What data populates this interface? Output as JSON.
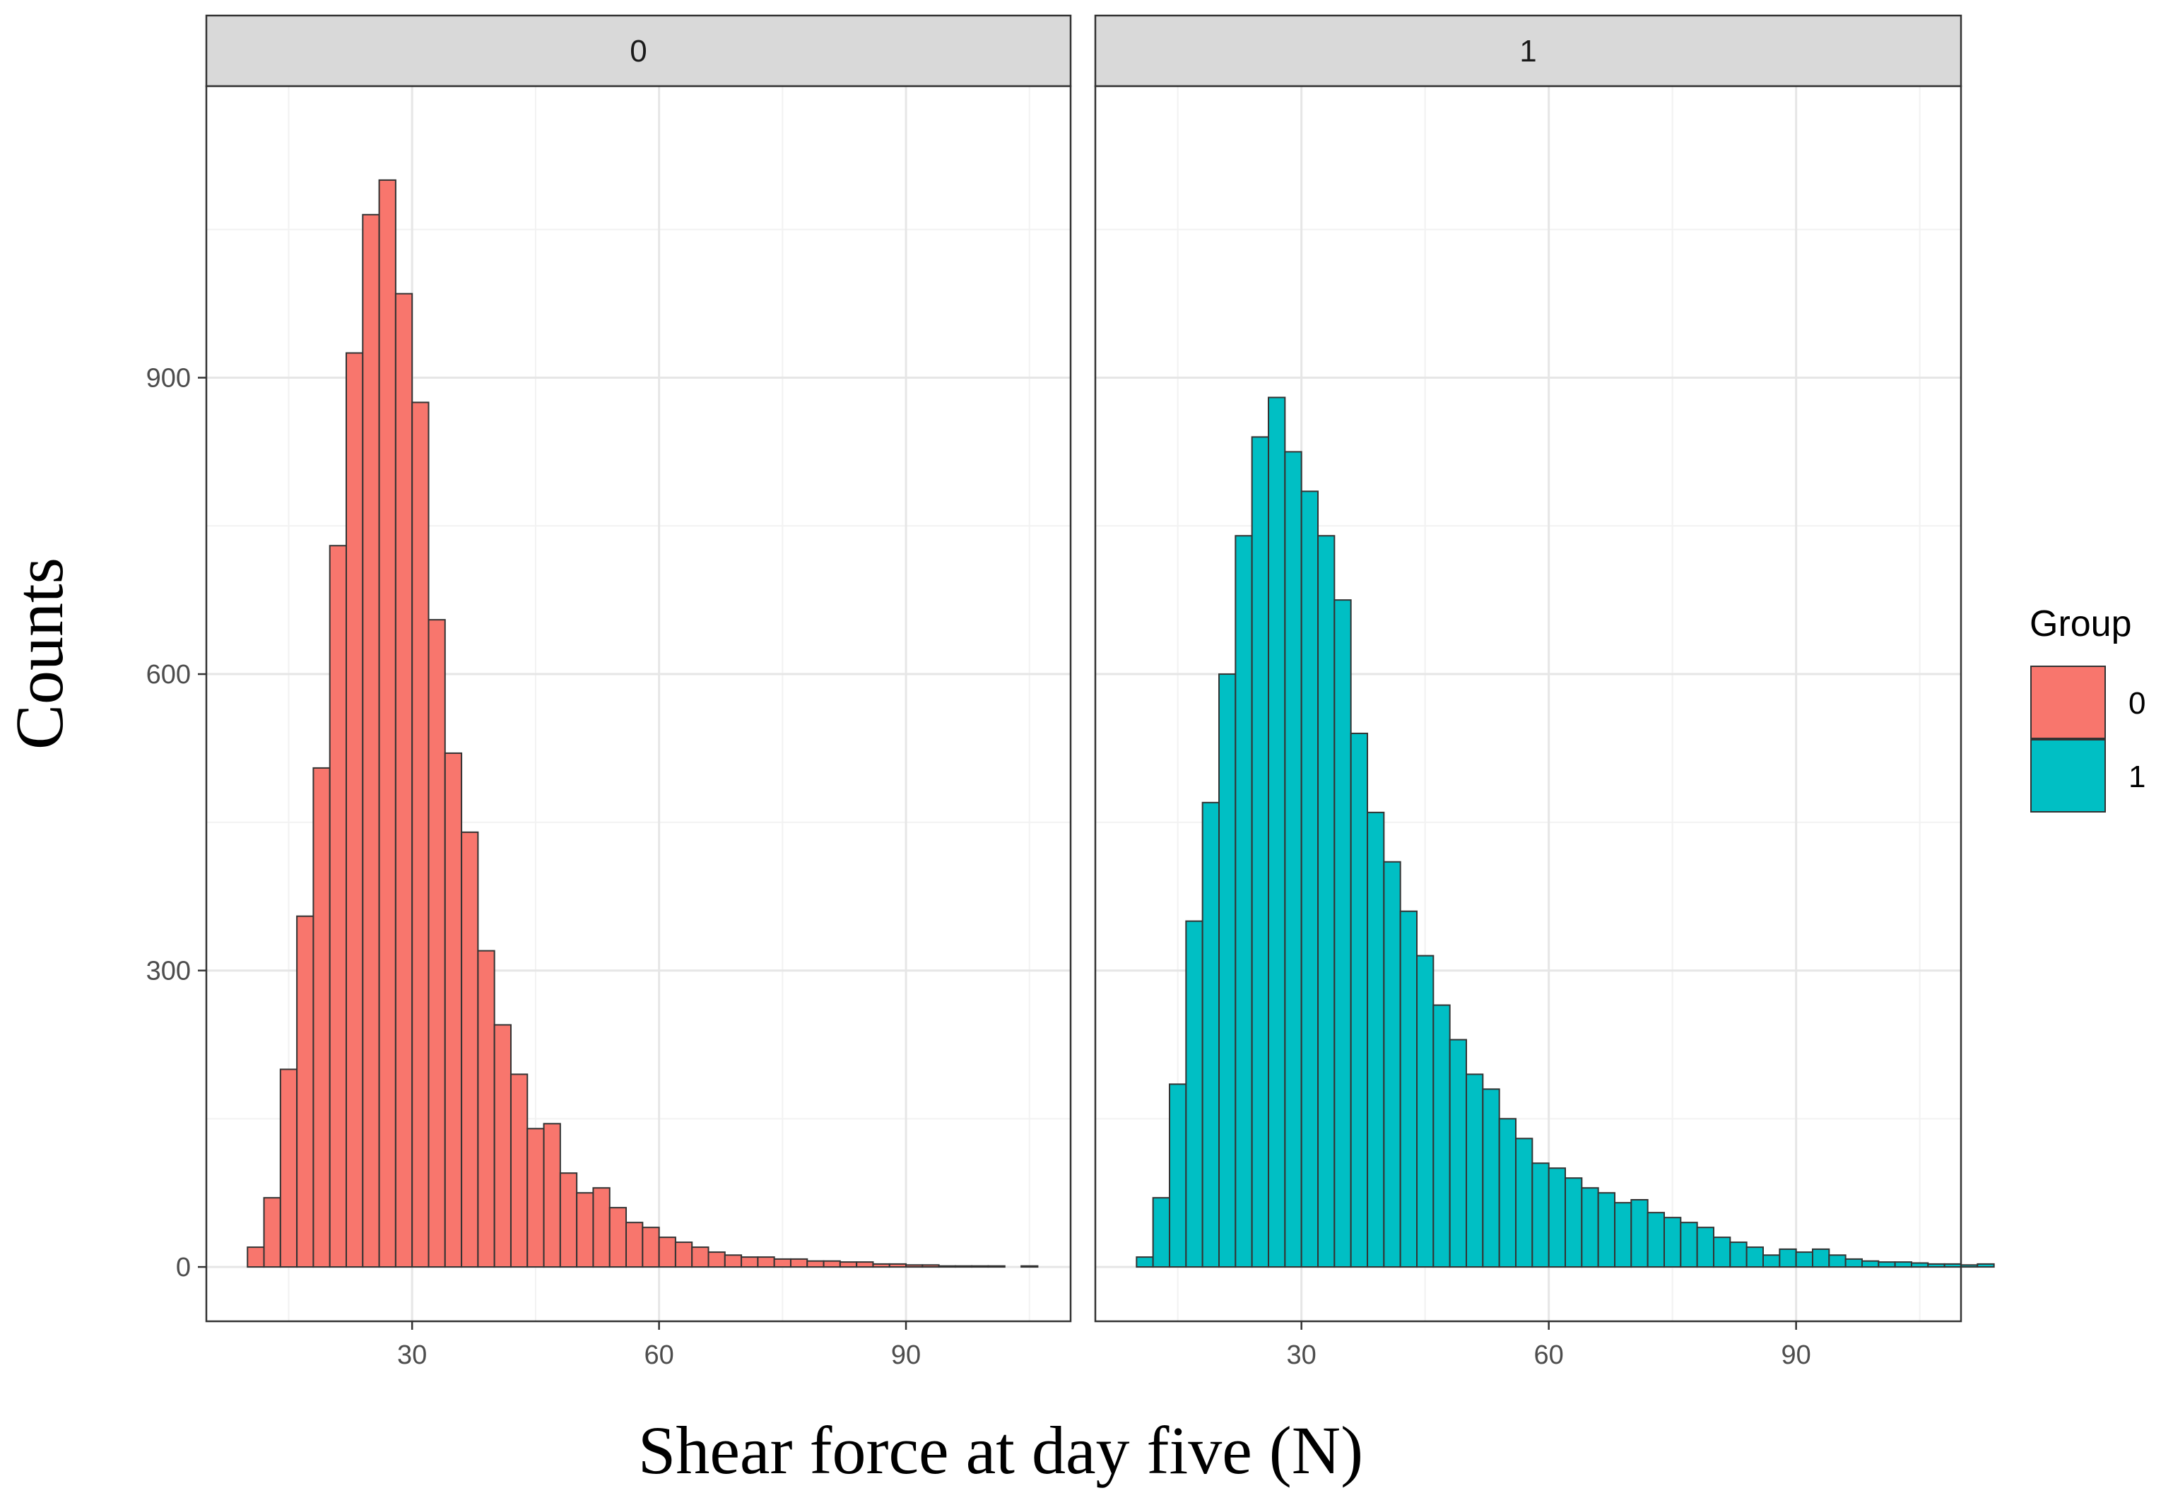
{
  "chart_data": {
    "type": "histogram",
    "xlabel": "Shear force at day five (N)",
    "ylabel": "Counts",
    "x_ticks": [
      30,
      60,
      90
    ],
    "y_ticks": [
      0,
      300,
      600,
      900
    ],
    "xlim": [
      5,
      110
    ],
    "ylim": [
      -55,
      1195
    ],
    "bin_start": 10,
    "bin_width": 2,
    "grid": true,
    "legend": {
      "title": "Group",
      "position": "right",
      "entries": [
        {
          "label": "0",
          "color": "#F8766D"
        },
        {
          "label": "1",
          "color": "#00BFC4"
        }
      ]
    },
    "panels": [
      {
        "strip_label": "0",
        "group": "0",
        "fill": "#F8766D",
        "counts": [
          20,
          70,
          200,
          355,
          505,
          730,
          925,
          1065,
          1100,
          985,
          875,
          655,
          520,
          440,
          320,
          245,
          195,
          140,
          145,
          95,
          75,
          80,
          60,
          45,
          40,
          30,
          25,
          20,
          15,
          12,
          10,
          10,
          8,
          8,
          6,
          6,
          5,
          5,
          3,
          3,
          2,
          2,
          1,
          1,
          1,
          1,
          0,
          1
        ]
      },
      {
        "strip_label": "1",
        "group": "1",
        "fill": "#00BFC4",
        "counts": [
          10,
          70,
          185,
          350,
          470,
          600,
          740,
          840,
          880,
          825,
          785,
          740,
          675,
          540,
          460,
          410,
          360,
          315,
          265,
          230,
          195,
          180,
          150,
          130,
          105,
          100,
          90,
          80,
          75,
          65,
          68,
          55,
          50,
          45,
          40,
          30,
          25,
          20,
          12,
          18,
          15,
          18,
          12,
          8,
          6,
          5,
          5,
          4,
          3,
          3,
          2,
          3
        ]
      }
    ]
  }
}
